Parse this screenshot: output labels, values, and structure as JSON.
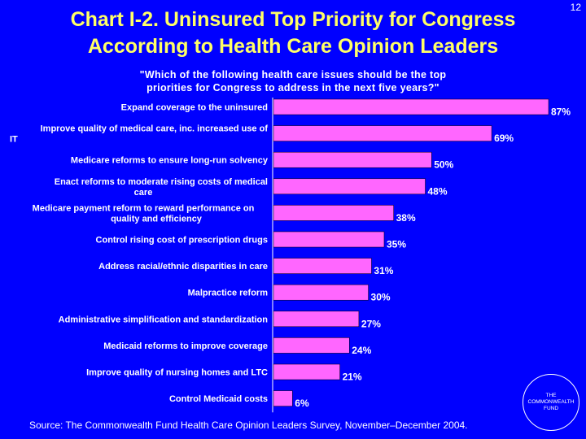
{
  "slide_number": "12",
  "title_line1": "Chart I-2. Uninsured Top Priority for Congress",
  "title_line2": "According to Health Care Opinion Leaders",
  "subtitle_line1": "\"Which of the following health care issues should be the top",
  "subtitle_line2": "priorities for Congress to address in the next five years?\"",
  "source": "Source: The Commonwealth Fund Health Care Opinion Leaders Survey, November–December 2004.",
  "logo": {
    "line1": "THE",
    "line2": "COMMONWEALTH",
    "line3": "FUND"
  },
  "colors": {
    "background": "#0000ff",
    "title": "#ffff66",
    "bar": "#ff66ff",
    "text": "#ffffff"
  },
  "chart_data": {
    "type": "bar",
    "orientation": "horizontal",
    "categories": [
      [
        "Expand coverage to the uninsured"
      ],
      [
        "Improve quality of medical care, inc. increased use of",
        "IT"
      ],
      [
        "Medicare reforms to ensure long-run solvency"
      ],
      [
        "Enact reforms to moderate rising costs of medical",
        "care"
      ],
      [
        "Medicare payment reform to reward performance on",
        "quality and efficiency"
      ],
      [
        "Control rising cost of prescription drugs"
      ],
      [
        "Address racial/ethnic disparities in care"
      ],
      [
        "Malpractice reform"
      ],
      [
        "Administrative simplification and standardization"
      ],
      [
        "Medicaid reforms to improve coverage"
      ],
      [
        "Improve quality of nursing homes and LTC"
      ],
      [
        "Control Medicaid costs"
      ]
    ],
    "values": [
      87,
      69,
      50,
      48,
      38,
      35,
      31,
      30,
      27,
      24,
      21,
      6
    ],
    "value_labels": [
      "87%",
      "69%",
      "50%",
      "48%",
      "38%",
      "35%",
      "31%",
      "30%",
      "27%",
      "24%",
      "21%",
      "6%"
    ],
    "xlim": [
      0,
      87
    ],
    "grid": false,
    "legend": "none"
  }
}
